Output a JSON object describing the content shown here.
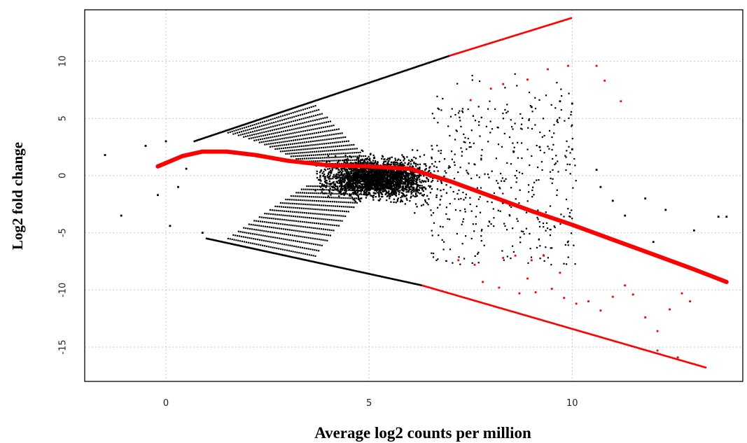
{
  "chart_data": {
    "type": "scatter",
    "title": "",
    "xlabel": "Average log2 counts per million",
    "ylabel": "Log2 fold change",
    "xlim": [
      -2.0,
      14.2
    ],
    "ylim": [
      -18.0,
      14.5
    ],
    "x_ticks": [
      0,
      5,
      10
    ],
    "y_ticks": [
      10,
      5,
      0,
      -5,
      -10,
      -15
    ],
    "grid": true,
    "colors": {
      "points": "#000000",
      "significant": "#ff0000",
      "trend": "#ff0000",
      "grid": "#c9c9c9"
    },
    "upper_boundary": {
      "x": [
        0.7,
        7.0,
        10.0
      ],
      "y": [
        3.0,
        10.5,
        13.8
      ],
      "red_from_x": 7.0
    },
    "lower_boundary": {
      "x": [
        1.0,
        6.3,
        13.3
      ],
      "y": [
        -5.5,
        -9.6,
        -16.8
      ],
      "red_from_x": 6.3
    },
    "isolated_points": [
      {
        "x": -1.5,
        "y": 1.8
      },
      {
        "x": -0.5,
        "y": 2.6
      },
      {
        "x": -1.1,
        "y": -3.5
      },
      {
        "x": 0.0,
        "y": 3.0
      },
      {
        "x": 0.1,
        "y": -4.4
      },
      {
        "x": -0.2,
        "y": -1.7
      },
      {
        "x": 0.9,
        "y": -5.0
      },
      {
        "x": 0.3,
        "y": -1.0
      },
      {
        "x": 0.5,
        "y": 0.6
      },
      {
        "x": 10.0,
        "y": 2.3
      },
      {
        "x": 10.0,
        "y": 6.3
      },
      {
        "x": 9.7,
        "y": 6.5
      },
      {
        "x": 10.7,
        "y": -1.0
      },
      {
        "x": 11.0,
        "y": -2.2
      },
      {
        "x": 11.3,
        "y": -3.5
      },
      {
        "x": 12.0,
        "y": -5.8
      },
      {
        "x": 12.3,
        "y": -3.0
      },
      {
        "x": 13.0,
        "y": -4.8
      },
      {
        "x": 13.6,
        "y": -3.6
      },
      {
        "x": 13.8,
        "y": -3.6
      },
      {
        "x": 11.8,
        "y": -2.0
      },
      {
        "x": 9.2,
        "y": 2.5
      },
      {
        "x": 9.0,
        "y": 6.0
      },
      {
        "x": 10.6,
        "y": 0.5
      }
    ],
    "significant_points": [
      {
        "x": 7.5,
        "y": 6.6
      },
      {
        "x": 8.0,
        "y": 7.6
      },
      {
        "x": 8.3,
        "y": 8.0
      },
      {
        "x": 8.9,
        "y": 8.4
      },
      {
        "x": 9.4,
        "y": 9.3
      },
      {
        "x": 9.9,
        "y": 9.6
      },
      {
        "x": 10.6,
        "y": 9.6
      },
      {
        "x": 10.8,
        "y": 8.3
      },
      {
        "x": 11.2,
        "y": 6.5
      },
      {
        "x": 7.2,
        "y": -7.4
      },
      {
        "x": 7.6,
        "y": -7.8
      },
      {
        "x": 8.3,
        "y": -7.2
      },
      {
        "x": 8.6,
        "y": -7.0
      },
      {
        "x": 9.0,
        "y": -7.4
      },
      {
        "x": 9.3,
        "y": -7.0
      },
      {
        "x": 7.8,
        "y": -9.3
      },
      {
        "x": 8.2,
        "y": -9.8
      },
      {
        "x": 8.7,
        "y": -10.3
      },
      {
        "x": 9.1,
        "y": -10.2
      },
      {
        "x": 9.5,
        "y": -9.9
      },
      {
        "x": 9.8,
        "y": -10.7
      },
      {
        "x": 10.1,
        "y": -11.2
      },
      {
        "x": 10.4,
        "y": -11.0
      },
      {
        "x": 10.7,
        "y": -11.8
      },
      {
        "x": 11.0,
        "y": -10.6
      },
      {
        "x": 11.3,
        "y": -9.6
      },
      {
        "x": 11.5,
        "y": -10.4
      },
      {
        "x": 11.8,
        "y": -12.4
      },
      {
        "x": 12.1,
        "y": -13.6
      },
      {
        "x": 12.4,
        "y": -11.7
      },
      {
        "x": 12.7,
        "y": -10.3
      },
      {
        "x": 12.9,
        "y": -11.0
      },
      {
        "x": 12.6,
        "y": -15.9
      },
      {
        "x": 12.1,
        "y": -15.3
      },
      {
        "x": 8.9,
        "y": -9.0
      },
      {
        "x": 9.7,
        "y": -8.5
      }
    ],
    "trend": {
      "name": "trend",
      "x": [
        -0.2,
        0.4,
        0.9,
        1.5,
        2.2,
        3.0,
        4.0,
        5.0,
        6.0,
        7.0,
        8.0,
        9.0,
        10.0,
        11.0,
        12.0,
        13.0,
        13.8
      ],
      "y": [
        0.8,
        1.7,
        2.1,
        2.1,
        1.8,
        1.3,
        0.9,
        0.8,
        0.6,
        -0.5,
        -1.8,
        -3.1,
        -4.3,
        -5.6,
        -6.9,
        -8.2,
        -9.3
      ]
    }
  }
}
